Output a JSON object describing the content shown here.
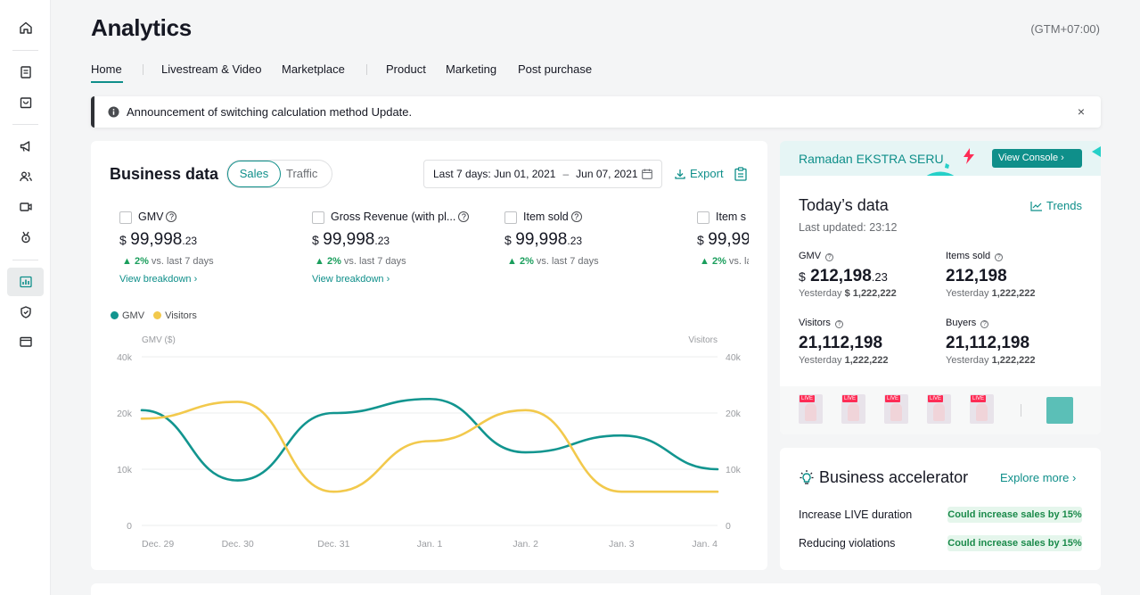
{
  "header": {
    "title": "Analytics",
    "timezone": "(GTM+07:00)"
  },
  "tabs": [
    {
      "label": "Home",
      "active": true
    },
    {
      "label": "Livestream & Video"
    },
    {
      "label": "Marketplace"
    },
    {
      "label": "Product"
    },
    {
      "label": "Marketing"
    },
    {
      "label": "Post purchase"
    }
  ],
  "announcement": {
    "text": "Announcement of switching calculation method Update.",
    "close": "×"
  },
  "business_data": {
    "title": "Business data",
    "segment": {
      "sales": "Sales",
      "traffic": "Traffic"
    },
    "date_range": {
      "prefix": "Last 7 days:",
      "start": "Jun 01, 2021",
      "sep": "–",
      "end": "Jun 07, 2021"
    },
    "export_label": "Export",
    "metrics": [
      {
        "label": "GMV",
        "currency": "$",
        "value": "99,998",
        "decimals": ".23",
        "delta": "2%",
        "delta_text": "vs. last 7 days",
        "link": "View breakdown"
      },
      {
        "label": "Gross Revenue (with pl...",
        "currency": "$",
        "value": "99,998",
        "decimals": ".23",
        "delta": "2%",
        "delta_text": "vs. last 7 days",
        "link": "View breakdown"
      },
      {
        "label": "Item sold",
        "currency": "$",
        "value": "99,998",
        "decimals": ".23",
        "delta": "2%",
        "delta_text": "vs. last 7 days",
        "link": ""
      },
      {
        "label": "Item s",
        "currency": "$",
        "value": "99,99",
        "decimals": "",
        "delta": "2%",
        "delta_text": "vs. la",
        "link": ""
      }
    ],
    "legend": [
      {
        "name": "GMV",
        "color": "#12958f"
      },
      {
        "name": "Visitors",
        "color": "#f2c94c"
      }
    ]
  },
  "chart_data": {
    "type": "line",
    "x": [
      "Dec. 29",
      "Dec. 30",
      "Dec. 31",
      "Jan. 1",
      "Jan. 2",
      "Jan. 3",
      "Jan. 4"
    ],
    "ylabel": "GMV ($)",
    "y2label": "Visitors",
    "y_ticks": [
      "0",
      "10k",
      "20k",
      "40k"
    ],
    "y2_ticks": [
      "0",
      "10k",
      "20k",
      "40k"
    ],
    "ylim": [
      0,
      40000
    ],
    "grid": true,
    "legend_position": "top-left",
    "series": [
      {
        "name": "GMV",
        "color": "#12958f",
        "values": [
          21000,
          8000,
          20000,
          25000,
          13000,
          16000,
          10000
        ]
      },
      {
        "name": "Visitors",
        "color": "#f2c94c",
        "values": [
          19000,
          24000,
          6000,
          15000,
          21000,
          6000,
          6000
        ]
      }
    ]
  },
  "promo": {
    "text": "Ramadan EKSTRA SERU",
    "button": "View Console"
  },
  "today": {
    "title": "Today’s data",
    "updated": "Last updated: 23:12",
    "trends": "Trends",
    "stats": [
      {
        "label": "GMV",
        "currency": "$",
        "value": "212,198",
        "decimals": ".23",
        "yest_label": "Yesterday",
        "yest_value": "$ 1,222,222"
      },
      {
        "label": "Items sold",
        "currency": "",
        "value": "212,198",
        "decimals": "",
        "yest_label": "Yesterday",
        "yest_value": "1,222,222"
      },
      {
        "label": "Visitors",
        "currency": "",
        "value": "21,112,198",
        "decimals": "",
        "yest_label": "Yesterday",
        "yest_value": "1,222,222"
      },
      {
        "label": "Buyers",
        "currency": "",
        "value": "21,112,198",
        "decimals": "",
        "yest_label": "Yesterday",
        "yest_value": "1,222,222"
      }
    ],
    "live_badge": "LIVE"
  },
  "accelerator": {
    "title": "Business accelerator",
    "more": "Explore more",
    "rows": [
      {
        "label": "Increase LIVE duration",
        "pill": "Could increase sales by 15%"
      },
      {
        "label": "Reducing violations",
        "pill": "Could increase sales by 15%"
      }
    ]
  },
  "colors": {
    "accent": "#0f8f8a",
    "gmv_line": "#12958f",
    "visitors_line": "#f2c94c",
    "positive": "#1a9e5c"
  }
}
